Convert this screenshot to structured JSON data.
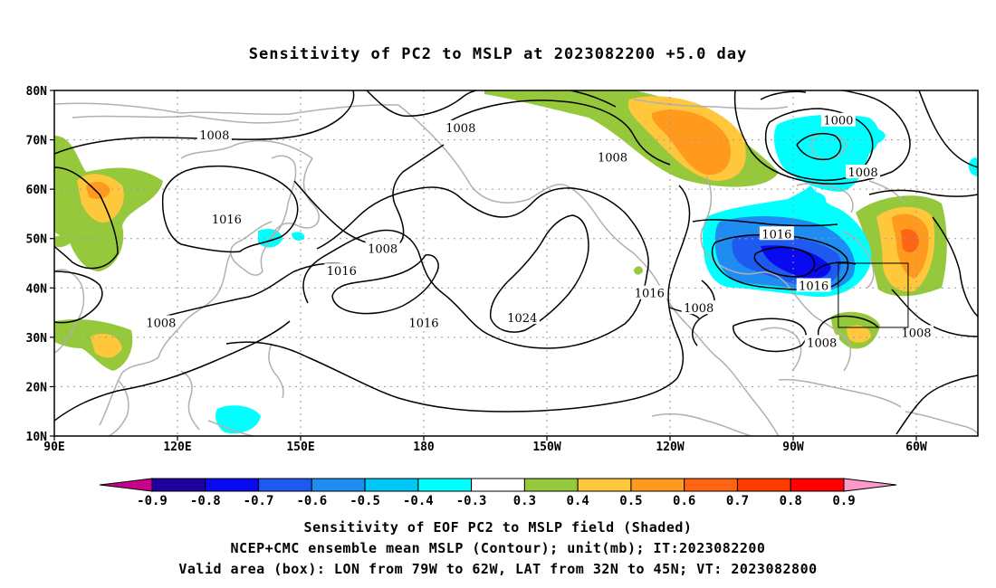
{
  "title": "Sensitivity of PC2 to MSLP at 2023082200 +5.0 day",
  "lat_labels": [
    "80N",
    "70N",
    "60N",
    "50N",
    "40N",
    "30N",
    "20N",
    "10N"
  ],
  "lon_labels": [
    "90E",
    "120E",
    "150E",
    "180",
    "150W",
    "120W",
    "90W",
    "60W"
  ],
  "contour_labels": [
    {
      "text": "1008",
      "lon": 129,
      "lat": 71
    },
    {
      "text": "1016",
      "lon": 132,
      "lat": 54
    },
    {
      "text": "1008",
      "lon": 189,
      "lat": 72.5
    },
    {
      "text": "1008",
      "lon": 226,
      "lat": 66.5
    },
    {
      "text": "1000",
      "lon": 281,
      "lat": 74
    },
    {
      "text": "1008",
      "lon": 287,
      "lat": 63.5
    },
    {
      "text": "1008",
      "lon": 170,
      "lat": 48
    },
    {
      "text": "1016",
      "lon": 160,
      "lat": 43.5
    },
    {
      "text": "1016",
      "lon": 180,
      "lat": 33
    },
    {
      "text": "1024",
      "lon": 204,
      "lat": 34
    },
    {
      "text": "1016",
      "lon": 235,
      "lat": 39
    },
    {
      "text": "1008",
      "lon": 247,
      "lat": 36
    },
    {
      "text": "1016",
      "lon": 266,
      "lat": 51
    },
    {
      "text": "1016",
      "lon": 275,
      "lat": 40.5
    },
    {
      "text": "1008",
      "lon": 277,
      "lat": 29
    },
    {
      "text": "1008",
      "lon": 300,
      "lat": 31
    },
    {
      "text": "1008",
      "lon": 116,
      "lat": 33
    }
  ],
  "colorbar": {
    "colors": [
      "#c8008c",
      "#1e00a0",
      "#0a0af0",
      "#1e5af0",
      "#1e8cf0",
      "#00c8f5",
      "#00ffff",
      "#ffffff",
      "#96c83c",
      "#ffc83c",
      "#ff9a1e",
      "#ff6414",
      "#ff3c00",
      "#ff0000",
      "#ff9ac8"
    ],
    "labels": [
      "-0.9",
      "-0.8",
      "-0.7",
      "-0.6",
      "-0.5",
      "-0.4",
      "-0.3",
      "0.3",
      "0.4",
      "0.5",
      "0.6",
      "0.7",
      "0.8",
      "0.9"
    ]
  },
  "caption": [
    "Sensitivity of EOF PC2 to MSLP field (Shaded)",
    "NCEP+CMC ensemble mean MSLP (Contour); unit(mb); IT:2023082200",
    "Valid area (box): LON from 79W to 62W, LAT from 32N to 45N; VT: 2023082800"
  ],
  "valid_box": {
    "lon_min": 281,
    "lon_max": 298,
    "lat_min": 32,
    "lat_max": 45
  },
  "colors": {
    "coast": "#b0b0b0",
    "contour": "#000000",
    "grid": "#9a9a9a"
  }
}
